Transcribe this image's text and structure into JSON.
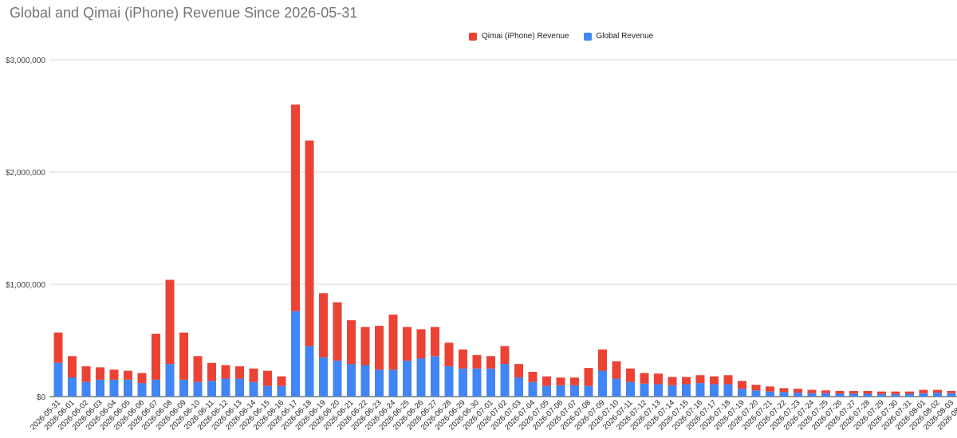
{
  "chart_data": {
    "type": "bar",
    "stacked": true,
    "title": "Global and Qimai (iPhone) Revenue Since 2026-05-31",
    "xlabel": "",
    "ylabel": "",
    "ylim": [
      0,
      3000000
    ],
    "yticks": [
      0,
      1000000,
      2000000,
      3000000
    ],
    "ytick_labels": [
      "$0",
      "$1,000,000",
      "$2,000,000",
      "$3,000,000"
    ],
    "grid": true,
    "legend_position": "top-center",
    "categories": [
      "2026-05-31",
      "2026-06-01",
      "2026-06-02",
      "2026-06-03",
      "2026-06-04",
      "2026-06-05",
      "2026-06-06",
      "2026-06-07",
      "2026-06-08",
      "2026-06-09",
      "2026-06-10",
      "2026-06-11",
      "2026-06-12",
      "2026-06-13",
      "2026-06-14",
      "2026-06-15",
      "2026-06-16",
      "2026-06-17",
      "2026-06-18",
      "2026-06-19",
      "2026-06-20",
      "2026-06-21",
      "2026-06-22",
      "2026-06-23",
      "2026-06-24",
      "2026-06-25",
      "2026-06-26",
      "2026-06-27",
      "2026-06-28",
      "2026-06-29",
      "2026-06-30",
      "2026-07-01",
      "2026-07-02",
      "2026-07-03",
      "2026-07-04",
      "2026-07-05",
      "2026-07-06",
      "2026-07-07",
      "2026-07-08",
      "2026-07-09",
      "2026-07-10",
      "2026-07-11",
      "2026-07-12",
      "2026-07-13",
      "2026-07-14",
      "2026-07-15",
      "2026-07-16",
      "2026-07-17",
      "2026-07-18",
      "2026-07-19",
      "2026-07-20",
      "2026-07-21",
      "2026-07-22",
      "2026-07-23",
      "2026-07-24",
      "2026-07-25",
      "2026-07-26",
      "2026-07-27",
      "2026-07-28",
      "2026-07-29",
      "2026-07-30",
      "2026-07-31",
      "2026-08-01",
      "2026-08-02",
      "2026-08-03",
      "2026-08-04"
    ],
    "series": [
      {
        "name": "Global Revenue",
        "color": "#4285F4",
        "values": [
          300000,
          170000,
          130000,
          150000,
          150000,
          150000,
          120000,
          150000,
          290000,
          150000,
          130000,
          140000,
          160000,
          160000,
          130000,
          95000,
          95000,
          760000,
          450000,
          350000,
          320000,
          290000,
          280000,
          240000,
          240000,
          320000,
          340000,
          360000,
          270000,
          250000,
          250000,
          250000,
          290000,
          170000,
          130000,
          95000,
          100000,
          100000,
          95000,
          230000,
          160000,
          130000,
          115000,
          110000,
          100000,
          110000,
          120000,
          110000,
          110000,
          70000,
          55000,
          45000,
          40000,
          35000,
          30000,
          30000,
          25000,
          25000,
          25000,
          22000,
          22000,
          25000,
          30000,
          35000,
          30000,
          30000
        ]
      },
      {
        "name": "Qimai (iPhone) Revenue",
        "color": "#EA4335",
        "values": [
          270000,
          190000,
          140000,
          110000,
          90000,
          80000,
          90000,
          410000,
          750000,
          420000,
          230000,
          160000,
          120000,
          110000,
          120000,
          135000,
          85000,
          1840000,
          1830000,
          570000,
          520000,
          390000,
          340000,
          390000,
          490000,
          300000,
          260000,
          260000,
          210000,
          170000,
          120000,
          110000,
          160000,
          120000,
          90000,
          85000,
          70000,
          70000,
          160000,
          190000,
          155000,
          120000,
          95000,
          95000,
          75000,
          65000,
          70000,
          70000,
          80000,
          70000,
          50000,
          45000,
          35000,
          35000,
          30000,
          25000,
          25000,
          25000,
          25000,
          23000,
          23000,
          20000,
          30000,
          25000,
          20000,
          20000
        ]
      }
    ]
  }
}
